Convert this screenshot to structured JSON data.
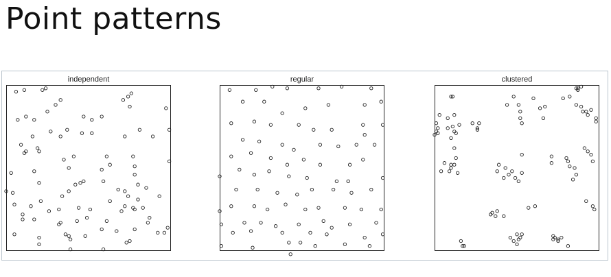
{
  "slide": {
    "title": "Point patterns"
  },
  "panels": [
    {
      "title": "independent",
      "points": [
        [
          0.06,
          0.96
        ],
        [
          0.11,
          0.97
        ],
        [
          0.22,
          0.97
        ],
        [
          0.24,
          0.98
        ],
        [
          0.3,
          0.88
        ],
        [
          0.33,
          0.91
        ],
        [
          0.71,
          0.91
        ],
        [
          0.74,
          0.93
        ],
        [
          0.76,
          0.95
        ],
        [
          0.75,
          0.87
        ],
        [
          0.97,
          0.86
        ],
        [
          0.99,
          0.73
        ],
        [
          0.07,
          0.79
        ],
        [
          0.12,
          0.81
        ],
        [
          0.17,
          0.79
        ],
        [
          0.25,
          0.84
        ],
        [
          0.47,
          0.81
        ],
        [
          0.52,
          0.79
        ],
        [
          0.58,
          0.81
        ],
        [
          0.09,
          0.64
        ],
        [
          0.16,
          0.69
        ],
        [
          0.27,
          0.72
        ],
        [
          0.33,
          0.69
        ],
        [
          0.37,
          0.73
        ],
        [
          0.46,
          0.71
        ],
        [
          0.52,
          0.71
        ],
        [
          0.72,
          0.69
        ],
        [
          0.81,
          0.73
        ],
        [
          0.89,
          0.69
        ],
        [
          0.11,
          0.59
        ],
        [
          0.12,
          0.6
        ],
        [
          0.19,
          0.62
        ],
        [
          0.2,
          0.6
        ],
        [
          0.35,
          0.55
        ],
        [
          0.41,
          0.57
        ],
        [
          0.61,
          0.57
        ],
        [
          0.63,
          0.52
        ],
        [
          0.77,
          0.57
        ],
        [
          0.78,
          0.51
        ],
        [
          0.99,
          0.54
        ],
        [
          0.17,
          0.48
        ],
        [
          0.38,
          0.5
        ],
        [
          0.58,
          0.49
        ],
        [
          0.03,
          0.47
        ],
        [
          0.78,
          0.46
        ],
        [
          0.42,
          0.4
        ],
        [
          0.45,
          0.41
        ],
        [
          0.47,
          0.42
        ],
        [
          0.2,
          0.41
        ],
        [
          0.59,
          0.42
        ],
        [
          0.85,
          0.38
        ],
        [
          0.8,
          0.4
        ],
        [
          0.0,
          0.36
        ],
        [
          0.04,
          0.35
        ],
        [
          0.15,
          0.27
        ],
        [
          0.21,
          0.3
        ],
        [
          0.34,
          0.33
        ],
        [
          0.38,
          0.36
        ],
        [
          0.68,
          0.37
        ],
        [
          0.72,
          0.36
        ],
        [
          0.74,
          0.33
        ],
        [
          0.8,
          0.31
        ],
        [
          0.93,
          0.33
        ],
        [
          0.05,
          0.28
        ],
        [
          0.26,
          0.24
        ],
        [
          0.32,
          0.25
        ],
        [
          0.44,
          0.26
        ],
        [
          0.51,
          0.25
        ],
        [
          0.63,
          0.3
        ],
        [
          0.72,
          0.27
        ],
        [
          0.77,
          0.26
        ],
        [
          0.78,
          0.25
        ],
        [
          0.83,
          0.26
        ],
        [
          0.1,
          0.22
        ],
        [
          0.17,
          0.19
        ],
        [
          0.32,
          0.16
        ],
        [
          0.43,
          0.18
        ],
        [
          0.49,
          0.2
        ],
        [
          0.61,
          0.18
        ],
        [
          0.7,
          0.24
        ],
        [
          0.86,
          0.17
        ],
        [
          0.1,
          0.19
        ],
        [
          0.33,
          0.17
        ],
        [
          0.58,
          0.13
        ],
        [
          0.67,
          0.12
        ],
        [
          0.78,
          0.13
        ],
        [
          0.87,
          0.2
        ],
        [
          0.92,
          0.11
        ],
        [
          0.98,
          0.14
        ],
        [
          0.05,
          0.1
        ],
        [
          0.2,
          0.08
        ],
        [
          0.36,
          0.1
        ],
        [
          0.39,
          0.07
        ],
        [
          0.38,
          0.09
        ],
        [
          0.48,
          0.09
        ],
        [
          0.73,
          0.05
        ],
        [
          0.75,
          0.06
        ],
        [
          0.96,
          0.11
        ],
        [
          0.2,
          0.04
        ],
        [
          0.39,
          0.01
        ],
        [
          0.59,
          0.01
        ]
      ]
    },
    {
      "title": "regular",
      "points": [
        [
          0.06,
          0.97
        ],
        [
          0.22,
          0.97
        ],
        [
          0.32,
          0.99
        ],
        [
          0.41,
          0.98
        ],
        [
          0.6,
          0.98
        ],
        [
          0.74,
          0.99
        ],
        [
          0.92,
          0.98
        ],
        [
          0.14,
          0.9
        ],
        [
          0.27,
          0.9
        ],
        [
          0.38,
          0.83
        ],
        [
          0.52,
          0.86
        ],
        [
          0.66,
          0.88
        ],
        [
          0.88,
          0.88
        ],
        [
          0.98,
          0.9
        ],
        [
          0.07,
          0.77
        ],
        [
          0.21,
          0.78
        ],
        [
          0.31,
          0.76
        ],
        [
          0.48,
          0.76
        ],
        [
          0.57,
          0.73
        ],
        [
          0.68,
          0.73
        ],
        [
          0.87,
          0.76
        ],
        [
          0.88,
          0.7
        ],
        [
          0.99,
          0.76
        ],
        [
          0.14,
          0.67
        ],
        [
          0.24,
          0.66
        ],
        [
          0.38,
          0.64
        ],
        [
          0.45,
          0.61
        ],
        [
          0.61,
          0.64
        ],
        [
          0.72,
          0.63
        ],
        [
          0.83,
          0.64
        ],
        [
          0.94,
          0.64
        ],
        [
          0.07,
          0.57
        ],
        [
          0.19,
          0.59
        ],
        [
          0.31,
          0.56
        ],
        [
          0.41,
          0.52
        ],
        [
          0.51,
          0.55
        ],
        [
          0.61,
          0.52
        ],
        [
          0.79,
          0.52
        ],
        [
          0.87,
          0.55
        ],
        [
          0.0,
          0.45
        ],
        [
          0.12,
          0.49
        ],
        [
          0.21,
          0.46
        ],
        [
          0.3,
          0.48
        ],
        [
          0.42,
          0.45
        ],
        [
          0.53,
          0.44
        ],
        [
          0.71,
          0.42
        ],
        [
          0.78,
          0.42
        ],
        [
          0.99,
          0.44
        ],
        [
          0.1,
          0.37
        ],
        [
          0.23,
          0.37
        ],
        [
          0.35,
          0.35
        ],
        [
          0.47,
          0.34
        ],
        [
          0.56,
          0.37
        ],
        [
          0.69,
          0.37
        ],
        [
          0.8,
          0.35
        ],
        [
          0.92,
          0.37
        ],
        [
          0.0,
          0.24
        ],
        [
          0.07,
          0.27
        ],
        [
          0.21,
          0.27
        ],
        [
          0.29,
          0.25
        ],
        [
          0.4,
          0.28
        ],
        [
          0.52,
          0.25
        ],
        [
          0.6,
          0.26
        ],
        [
          0.76,
          0.26
        ],
        [
          0.86,
          0.25
        ],
        [
          0.98,
          0.25
        ],
        [
          0.01,
          0.16
        ],
        [
          0.15,
          0.17
        ],
        [
          0.25,
          0.17
        ],
        [
          0.34,
          0.15
        ],
        [
          0.48,
          0.16
        ],
        [
          0.63,
          0.18
        ],
        [
          0.68,
          0.14
        ],
        [
          0.79,
          0.16
        ],
        [
          0.95,
          0.17
        ],
        [
          0.08,
          0.11
        ],
        [
          0.19,
          0.12
        ],
        [
          0.38,
          0.11
        ],
        [
          0.55,
          0.11
        ],
        [
          0.65,
          0.1
        ],
        [
          0.88,
          0.08
        ],
        [
          0.99,
          0.1
        ],
        [
          0.01,
          0.03
        ],
        [
          0.2,
          0.02
        ],
        [
          0.42,
          0.05
        ],
        [
          0.49,
          0.05
        ],
        [
          0.58,
          0.03
        ],
        [
          0.76,
          0.04
        ],
        [
          0.91,
          0.03
        ],
        [
          0.43,
          -0.02
        ]
      ]
    },
    {
      "title": "clustered",
      "points": [
        [
          0.86,
          0.98
        ],
        [
          0.87,
          0.98
        ],
        [
          0.89,
          0.99
        ],
        [
          0.87,
          0.97
        ],
        [
          0.6,
          0.92
        ],
        [
          0.78,
          0.92
        ],
        [
          0.82,
          0.93
        ],
        [
          0.86,
          0.88
        ],
        [
          0.89,
          0.87
        ],
        [
          0.9,
          0.84
        ],
        [
          0.93,
          0.82
        ],
        [
          0.95,
          0.85
        ],
        [
          0.98,
          0.8
        ],
        [
          0.98,
          0.78
        ],
        [
          0.92,
          0.84
        ],
        [
          0.64,
          0.86
        ],
        [
          0.66,
          0.8
        ],
        [
          0.67,
          0.87
        ],
        [
          0.48,
          0.93
        ],
        [
          0.44,
          0.88
        ],
        [
          0.51,
          0.88
        ],
        [
          0.52,
          0.8
        ],
        [
          0.53,
          0.77
        ],
        [
          0.52,
          0.84
        ],
        [
          0.1,
          0.93
        ],
        [
          0.11,
          0.93
        ],
        [
          0.01,
          0.77
        ],
        [
          0.01,
          0.72
        ],
        [
          0.02,
          0.74
        ],
        [
          0.03,
          0.82
        ],
        [
          0.08,
          0.8
        ],
        [
          0.12,
          0.82
        ],
        [
          0.11,
          0.75
        ],
        [
          0.13,
          0.71
        ],
        [
          0.12,
          0.72
        ],
        [
          0.08,
          0.74
        ],
        [
          0.0,
          0.7
        ],
        [
          0.02,
          0.71
        ],
        [
          0.15,
          0.76
        ],
        [
          0.23,
          0.77
        ],
        [
          0.26,
          0.74
        ],
        [
          0.26,
          0.73
        ],
        [
          0.27,
          0.77
        ],
        [
          0.1,
          0.68
        ],
        [
          0.12,
          0.62
        ],
        [
          0.13,
          0.56
        ],
        [
          0.1,
          0.52
        ],
        [
          0.12,
          0.52
        ],
        [
          0.06,
          0.53
        ],
        [
          0.04,
          0.48
        ],
        [
          0.09,
          0.48
        ],
        [
          0.1,
          0.5
        ],
        [
          0.14,
          0.47
        ],
        [
          0.43,
          0.5
        ],
        [
          0.39,
          0.52
        ],
        [
          0.38,
          0.48
        ],
        [
          0.45,
          0.46
        ],
        [
          0.42,
          0.44
        ],
        [
          0.49,
          0.44
        ],
        [
          0.51,
          0.42
        ],
        [
          0.53,
          0.47
        ],
        [
          0.47,
          0.48
        ],
        [
          0.53,
          0.58
        ],
        [
          0.71,
          0.57
        ],
        [
          0.71,
          0.53
        ],
        [
          0.8,
          0.56
        ],
        [
          0.81,
          0.54
        ],
        [
          0.82,
          0.51
        ],
        [
          0.85,
          0.5
        ],
        [
          0.86,
          0.46
        ],
        [
          0.84,
          0.43
        ],
        [
          0.91,
          0.62
        ],
        [
          0.93,
          0.6
        ],
        [
          0.95,
          0.58
        ],
        [
          0.96,
          0.54
        ],
        [
          0.92,
          0.3
        ],
        [
          0.96,
          0.27
        ],
        [
          0.97,
          0.25
        ],
        [
          0.57,
          0.26
        ],
        [
          0.61,
          0.27
        ],
        [
          0.34,
          0.22
        ],
        [
          0.35,
          0.23
        ],
        [
          0.37,
          0.21
        ],
        [
          0.38,
          0.24
        ],
        [
          0.42,
          0.21
        ],
        [
          0.46,
          0.08
        ],
        [
          0.48,
          0.06
        ],
        [
          0.5,
          0.1
        ],
        [
          0.52,
          0.08
        ],
        [
          0.53,
          0.1
        ],
        [
          0.5,
          0.04
        ],
        [
          0.51,
          0.07
        ],
        [
          0.72,
          0.09
        ],
        [
          0.72,
          0.07
        ],
        [
          0.73,
          0.08
        ],
        [
          0.75,
          0.06
        ],
        [
          0.75,
          0.07
        ],
        [
          0.77,
          0.08
        ],
        [
          0.81,
          0.03
        ],
        [
          0.16,
          0.06
        ],
        [
          0.17,
          0.03
        ],
        [
          0.18,
          0.03
        ]
      ]
    }
  ]
}
